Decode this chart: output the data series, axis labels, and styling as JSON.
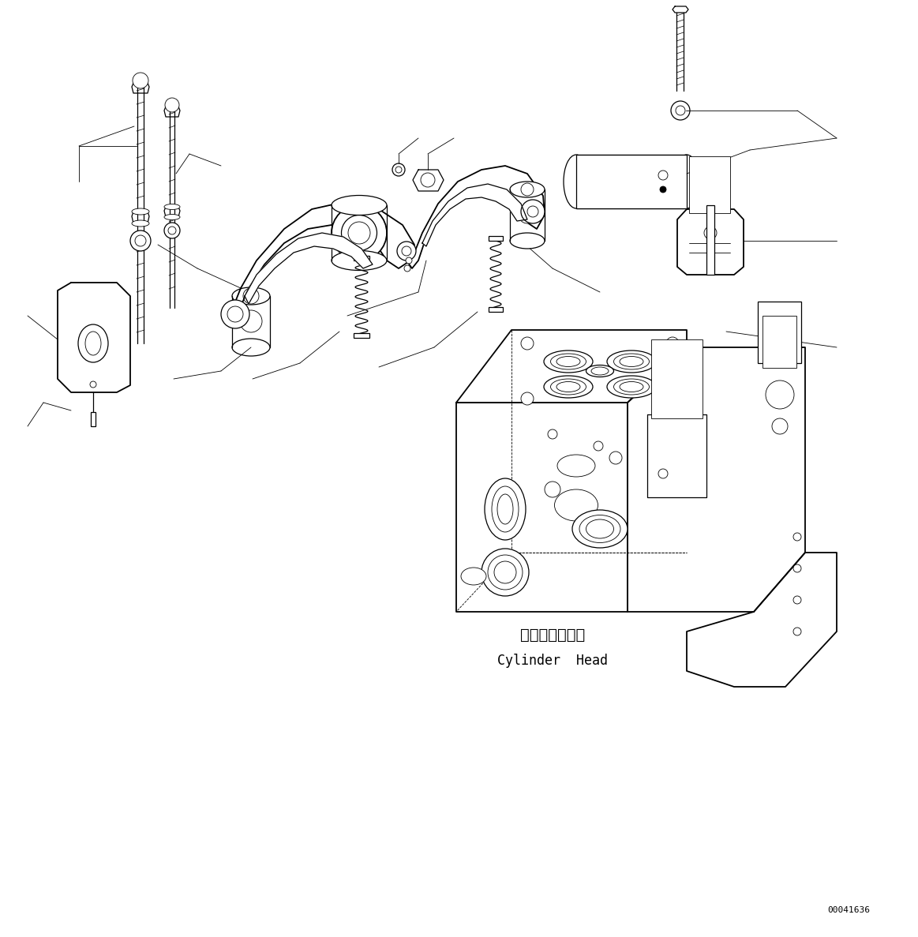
{
  "background_color": "#ffffff",
  "line_color": "#000000",
  "label_japanese": "シリンダヘッド",
  "label_english": "Cylinder  Head",
  "part_number": "00041636",
  "fig_width": 11.63,
  "fig_height": 11.87,
  "dpi": 100
}
